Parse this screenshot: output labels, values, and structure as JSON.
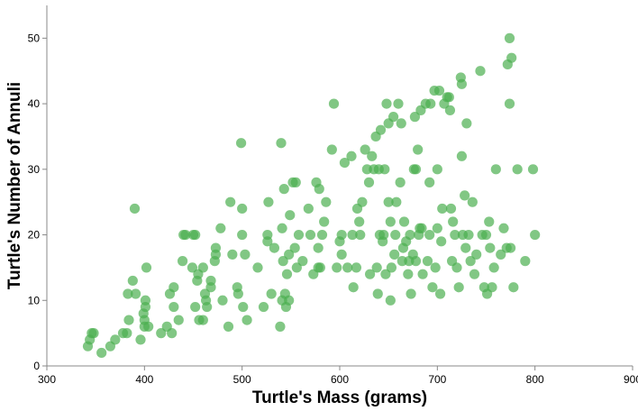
{
  "chart_data": {
    "type": "scatter",
    "title": "",
    "xlabel": "Turtle's Mass (grams)",
    "ylabel": "Turtle's Number of Annuli",
    "xlim": [
      300,
      900
    ],
    "ylim": [
      0,
      55
    ],
    "x_ticks": [
      300,
      400,
      500,
      600,
      700,
      800,
      900
    ],
    "y_ticks": [
      0,
      10,
      20,
      30,
      40,
      50
    ],
    "grid": false,
    "point_color": "#4caf50",
    "point_opacity": 0.7,
    "points": [
      [
        342,
        3
      ],
      [
        344,
        4
      ],
      [
        346,
        5
      ],
      [
        348,
        5
      ],
      [
        356,
        2
      ],
      [
        365,
        3
      ],
      [
        370,
        4
      ],
      [
        378,
        5
      ],
      [
        382,
        5
      ],
      [
        383,
        11
      ],
      [
        384,
        7
      ],
      [
        388,
        13
      ],
      [
        390,
        24
      ],
      [
        391,
        11
      ],
      [
        396,
        4
      ],
      [
        399,
        8
      ],
      [
        400,
        7
      ],
      [
        400,
        6
      ],
      [
        401,
        10
      ],
      [
        401,
        9
      ],
      [
        402,
        15
      ],
      [
        404,
        6
      ],
      [
        417,
        5
      ],
      [
        423,
        6
      ],
      [
        426,
        11
      ],
      [
        428,
        5
      ],
      [
        430,
        12
      ],
      [
        430,
        9
      ],
      [
        435,
        7
      ],
      [
        439,
        16
      ],
      [
        440,
        20
      ],
      [
        442,
        20
      ],
      [
        449,
        15
      ],
      [
        450,
        20
      ],
      [
        452,
        20
      ],
      [
        452,
        9
      ],
      [
        454,
        13
      ],
      [
        455,
        14
      ],
      [
        456,
        7
      ],
      [
        460,
        7
      ],
      [
        460,
        15
      ],
      [
        462,
        11
      ],
      [
        463,
        10
      ],
      [
        464,
        9
      ],
      [
        468,
        12
      ],
      [
        468,
        13
      ],
      [
        472,
        16
      ],
      [
        473,
        17
      ],
      [
        473,
        18
      ],
      [
        478,
        21
      ],
      [
        480,
        10
      ],
      [
        486,
        6
      ],
      [
        488,
        25
      ],
      [
        490,
        17
      ],
      [
        495,
        12
      ],
      [
        496,
        11
      ],
      [
        499,
        34
      ],
      [
        500,
        20
      ],
      [
        500,
        24
      ],
      [
        501,
        9
      ],
      [
        503,
        17
      ],
      [
        505,
        7
      ],
      [
        516,
        15
      ],
      [
        522,
        9
      ],
      [
        526,
        20
      ],
      [
        526,
        19
      ],
      [
        527,
        25
      ],
      [
        530,
        11
      ],
      [
        533,
        18
      ],
      [
        539,
        6
      ],
      [
        540,
        34
      ],
      [
        541,
        21
      ],
      [
        541,
        10
      ],
      [
        542,
        16
      ],
      [
        543,
        27
      ],
      [
        544,
        11
      ],
      [
        545,
        9
      ],
      [
        546,
        14
      ],
      [
        548,
        10
      ],
      [
        548,
        17
      ],
      [
        549,
        23
      ],
      [
        552,
        28
      ],
      [
        554,
        18
      ],
      [
        555,
        28
      ],
      [
        556,
        15
      ],
      [
        558,
        20
      ],
      [
        562,
        16
      ],
      [
        568,
        24
      ],
      [
        570,
        20
      ],
      [
        573,
        14
      ],
      [
        576,
        28
      ],
      [
        578,
        15
      ],
      [
        578,
        18
      ],
      [
        579,
        27
      ],
      [
        580,
        15
      ],
      [
        582,
        20
      ],
      [
        584,
        22
      ],
      [
        586,
        25
      ],
      [
        592,
        33
      ],
      [
        594,
        40
      ],
      [
        597,
        15
      ],
      [
        600,
        19
      ],
      [
        602,
        20
      ],
      [
        602,
        17
      ],
      [
        605,
        31
      ],
      [
        608,
        15
      ],
      [
        612,
        32
      ],
      [
        614,
        12
      ],
      [
        617,
        15
      ],
      [
        618,
        24
      ],
      [
        620,
        22
      ],
      [
        621,
        20
      ],
      [
        623,
        25
      ],
      [
        626,
        33
      ],
      [
        628,
        30
      ],
      [
        630,
        28
      ],
      [
        631,
        14
      ],
      [
        633,
        32
      ],
      [
        635,
        30
      ],
      [
        637,
        35
      ],
      [
        638,
        15
      ],
      [
        639,
        11
      ],
      [
        640,
        30
      ],
      [
        641,
        20
      ],
      [
        642,
        36
      ],
      [
        644,
        19
      ],
      [
        645,
        20
      ],
      [
        646,
        30
      ],
      [
        647,
        14
      ],
      [
        648,
        40
      ],
      [
        650,
        25
      ],
      [
        650,
        37
      ],
      [
        652,
        10
      ],
      [
        652,
        22
      ],
      [
        653,
        15
      ],
      [
        655,
        38
      ],
      [
        656,
        17
      ],
      [
        657,
        20
      ],
      [
        658,
        25
      ],
      [
        660,
        40
      ],
      [
        662,
        28
      ],
      [
        663,
        37
      ],
      [
        664,
        16
      ],
      [
        665,
        18
      ],
      [
        666,
        22
      ],
      [
        668,
        19
      ],
      [
        670,
        14
      ],
      [
        671,
        16
      ],
      [
        672,
        20
      ],
      [
        673,
        11
      ],
      [
        675,
        17
      ],
      [
        676,
        30
      ],
      [
        677,
        38
      ],
      [
        678,
        16
      ],
      [
        680,
        33
      ],
      [
        681,
        20
      ],
      [
        682,
        21
      ],
      [
        683,
        39
      ],
      [
        685,
        14
      ],
      [
        688,
        40
      ],
      [
        690,
        16
      ],
      [
        692,
        20
      ],
      [
        693,
        40
      ],
      [
        695,
        12
      ],
      [
        697,
        42
      ],
      [
        698,
        15
      ],
      [
        700,
        21
      ],
      [
        702,
        42
      ],
      [
        703,
        11
      ],
      [
        704,
        19
      ],
      [
        705,
        24
      ],
      [
        707,
        40
      ],
      [
        710,
        41
      ],
      [
        712,
        41
      ],
      [
        713,
        39
      ],
      [
        715,
        16
      ],
      [
        716,
        22
      ],
      [
        718,
        20
      ],
      [
        720,
        15
      ],
      [
        722,
        12
      ],
      [
        724,
        44
      ],
      [
        725,
        43
      ],
      [
        726,
        20
      ],
      [
        728,
        26
      ],
      [
        729,
        18
      ],
      [
        730,
        37
      ],
      [
        732,
        20
      ],
      [
        734,
        16
      ],
      [
        736,
        25
      ],
      [
        738,
        14
      ],
      [
        740,
        17
      ],
      [
        744,
        45
      ],
      [
        746,
        20
      ],
      [
        748,
        12
      ],
      [
        750,
        20
      ],
      [
        751,
        11
      ],
      [
        753,
        22
      ],
      [
        754,
        18
      ],
      [
        756,
        12
      ],
      [
        758,
        15
      ],
      [
        760,
        30
      ],
      [
        765,
        17
      ],
      [
        768,
        21
      ],
      [
        771,
        18
      ],
      [
        772,
        46
      ],
      [
        774,
        40
      ],
      [
        775,
        18
      ],
      [
        778,
        12
      ],
      [
        782,
        30
      ],
      [
        790,
        16
      ],
      [
        798,
        30
      ],
      [
        800,
        20
      ],
      [
        774,
        50
      ],
      [
        776,
        47
      ],
      [
        678,
        30
      ],
      [
        700,
        30
      ],
      [
        613,
        20
      ],
      [
        684,
        21
      ],
      [
        714,
        24
      ],
      [
        725,
        32
      ],
      [
        692,
        28
      ]
    ]
  }
}
